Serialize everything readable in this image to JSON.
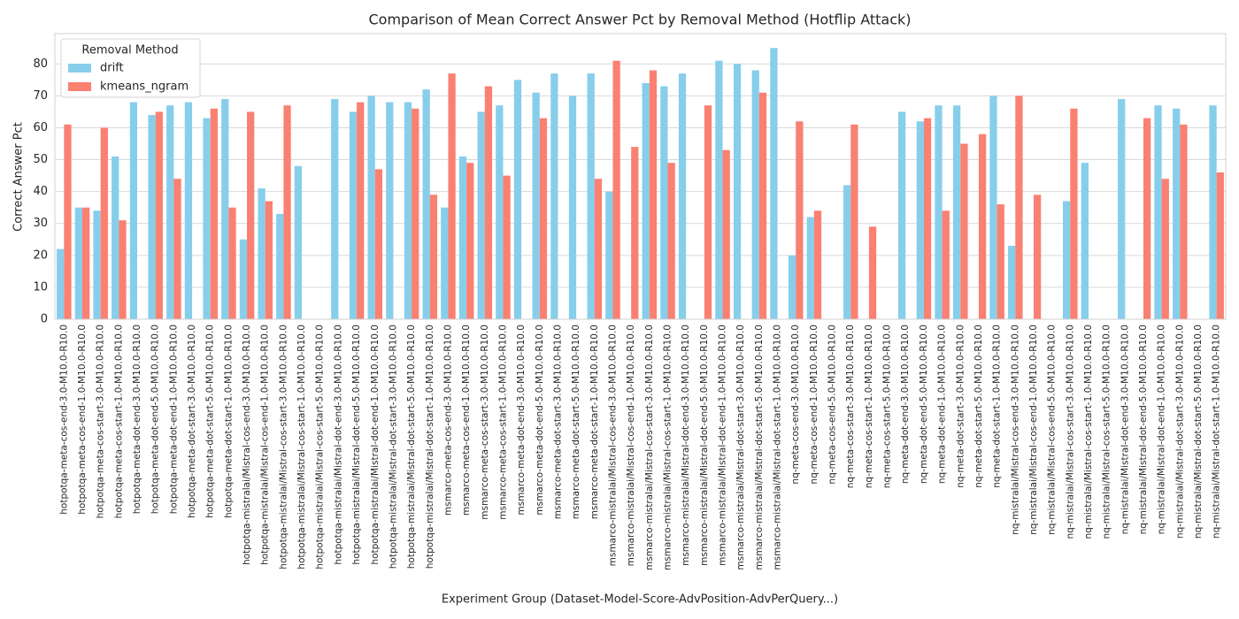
{
  "chart_data": {
    "type": "bar",
    "title": "Comparison of Mean Correct Answer Pct by Removal Method (Hotflip Attack)",
    "xlabel": "Experiment Group (Dataset-Model-Score-AdvPosition-AdvPerQuery...)",
    "ylabel": "Correct Answer Pct",
    "legend_title": "Removal Method",
    "legend": "upper left",
    "grid": true,
    "ylim": [
      0,
      89.5
    ],
    "yticks": [
      0,
      10,
      20,
      30,
      40,
      50,
      60,
      70,
      80
    ],
    "categories": [
      "hotpotqa-meta-cos-end-3.0-M10.0-R10.0",
      "hotpotqa-meta-cos-end-1.0-M10.0-R10.0",
      "hotpotqa-meta-cos-start-3.0-M10.0-R10.0",
      "hotpotqa-meta-cos-start-1.0-M10.0-R10.0",
      "hotpotqa-meta-dot-end-3.0-M10.0-R10.0",
      "hotpotqa-meta-dot-end-5.0-M10.0-R10.0",
      "hotpotqa-meta-dot-end-1.0-M10.0-R10.0",
      "hotpotqa-meta-dot-start-3.0-M10.0-R10.0",
      "hotpotqa-meta-dot-start-5.0-M10.0-R10.0",
      "hotpotqa-meta-dot-start-1.0-M10.0-R10.0",
      "hotpotqa-mistralai/Mistral-cos-end-3.0-M10.0-R10.0",
      "hotpotqa-mistralai/Mistral-cos-end-1.0-M10.0-R10.0",
      "hotpotqa-mistralai/Mistral-cos-start-3.0-M10.0-R10.0",
      "hotpotqa-mistralai/Mistral-cos-start-1.0-M10.0-R10.0",
      "hotpotqa-mistralai/Mistral-cos-start-5.0-M10.0-R10.0",
      "hotpotqa-mistralai/Mistral-dot-end-3.0-M10.0-R10.0",
      "hotpotqa-mistralai/Mistral-dot-end-5.0-M10.0-R10.0",
      "hotpotqa-mistralai/Mistral-dot-end-1.0-M10.0-R10.0",
      "hotpotqa-mistralai/Mistral-dot-start-3.0-M10.0-R10.0",
      "hotpotqa-mistralai/Mistral-dot-start-5.0-M10.0-R10.0",
      "hotpotqa-mistralai/Mistral-dot-start-1.0-M10.0-R10.0",
      "msmarco-meta-cos-end-3.0-M10.0-R10.0",
      "msmarco-meta-cos-end-1.0-M10.0-R10.0",
      "msmarco-meta-cos-start-3.0-M10.0-R10.0",
      "msmarco-meta-cos-start-1.0-M10.0-R10.0",
      "msmarco-meta-dot-end-3.0-M10.0-R10.0",
      "msmarco-meta-dot-end-5.0-M10.0-R10.0",
      "msmarco-meta-dot-start-3.0-M10.0-R10.0",
      "msmarco-meta-dot-start-5.0-M10.0-R10.0",
      "msmarco-meta-dot-start-1.0-M10.0-R10.0",
      "msmarco-mistralai/Mistral-cos-end-3.0-M10.0-R10.0",
      "msmarco-mistralai/Mistral-cos-end-1.0-M10.0-R10.0",
      "msmarco-mistralai/Mistral-cos-start-3.0-M10.0-R10.0",
      "msmarco-mistralai/Mistral-cos-start-1.0-M10.0-R10.0",
      "msmarco-mistralai/Mistral-dot-end-3.0-M10.0-R10.0",
      "msmarco-mistralai/Mistral-dot-end-5.0-M10.0-R10.0",
      "msmarco-mistralai/Mistral-dot-end-1.0-M10.0-R10.0",
      "msmarco-mistralai/Mistral-dot-start-3.0-M10.0-R10.0",
      "msmarco-mistralai/Mistral-dot-start-5.0-M10.0-R10.0",
      "msmarco-mistralai/Mistral-dot-start-1.0-M10.0-R10.0",
      "nq-meta-cos-end-3.0-M10.0-R10.0",
      "nq-meta-cos-end-1.0-M10.0-R10.0",
      "nq-meta-cos-end-5.0-M10.0-R10.0",
      "nq-meta-cos-start-3.0-M10.0-R10.0",
      "nq-meta-cos-start-1.0-M10.0-R10.0",
      "nq-meta-cos-start-5.0-M10.0-R10.0",
      "nq-meta-dot-end-3.0-M10.0-R10.0",
      "nq-meta-dot-end-5.0-M10.0-R10.0",
      "nq-meta-dot-end-1.0-M10.0-R10.0",
      "nq-meta-dot-start-3.0-M10.0-R10.0",
      "nq-meta-dot-start-5.0-M10.0-R10.0",
      "nq-meta-dot-start-1.0-M10.0-R10.0",
      "nq-mistralai/Mistral-cos-end-3.0-M10.0-R10.0",
      "nq-mistralai/Mistral-cos-end-1.0-M10.0-R10.0",
      "nq-mistralai/Mistral-cos-end-5.0-M10.0-R10.0",
      "nq-mistralai/Mistral-cos-start-3.0-M10.0-R10.0",
      "nq-mistralai/Mistral-cos-start-1.0-M10.0-R10.0",
      "nq-mistralai/Mistral-cos-start-5.0-M10.0-R10.0",
      "nq-mistralai/Mistral-dot-end-3.0-M10.0-R10.0",
      "nq-mistralai/Mistral-dot-end-5.0-M10.0-R10.0",
      "nq-mistralai/Mistral-dot-end-1.0-M10.0-R10.0",
      "nq-mistralai/Mistral-dot-start-3.0-M10.0-R10.0",
      "nq-mistralai/Mistral-dot-start-5.0-M10.0-R10.0",
      "nq-mistralai/Mistral-dot-start-1.0-M10.0-R10.0"
    ],
    "series": [
      {
        "name": "drift",
        "color": "#87ceeb",
        "values": [
          22,
          35,
          34,
          51,
          68,
          64,
          67,
          68,
          63,
          69,
          25,
          41,
          33,
          48,
          null,
          69,
          65,
          70,
          68,
          68,
          72,
          35,
          51,
          65,
          67,
          75,
          71,
          77,
          70,
          77,
          40,
          null,
          74,
          73,
          77,
          null,
          81,
          80,
          78,
          85,
          20,
          32,
          null,
          42,
          null,
          null,
          65,
          62,
          67,
          67,
          null,
          70,
          23,
          null,
          null,
          37,
          49,
          null,
          69,
          null,
          67,
          66,
          null,
          67
        ]
      },
      {
        "name": "kmeans_ngram",
        "color": "#fa8072",
        "values": [
          61,
          35,
          60,
          31,
          null,
          65,
          44,
          null,
          66,
          35,
          65,
          37,
          67,
          null,
          null,
          null,
          68,
          47,
          null,
          66,
          39,
          77,
          49,
          73,
          45,
          null,
          63,
          null,
          null,
          44,
          81,
          54,
          78,
          49,
          null,
          67,
          53,
          null,
          71,
          null,
          62,
          34,
          null,
          61,
          29,
          null,
          null,
          63,
          34,
          55,
          58,
          36,
          70,
          39,
          null,
          66,
          null,
          null,
          null,
          63,
          44,
          61,
          null,
          46
        ]
      }
    ]
  }
}
